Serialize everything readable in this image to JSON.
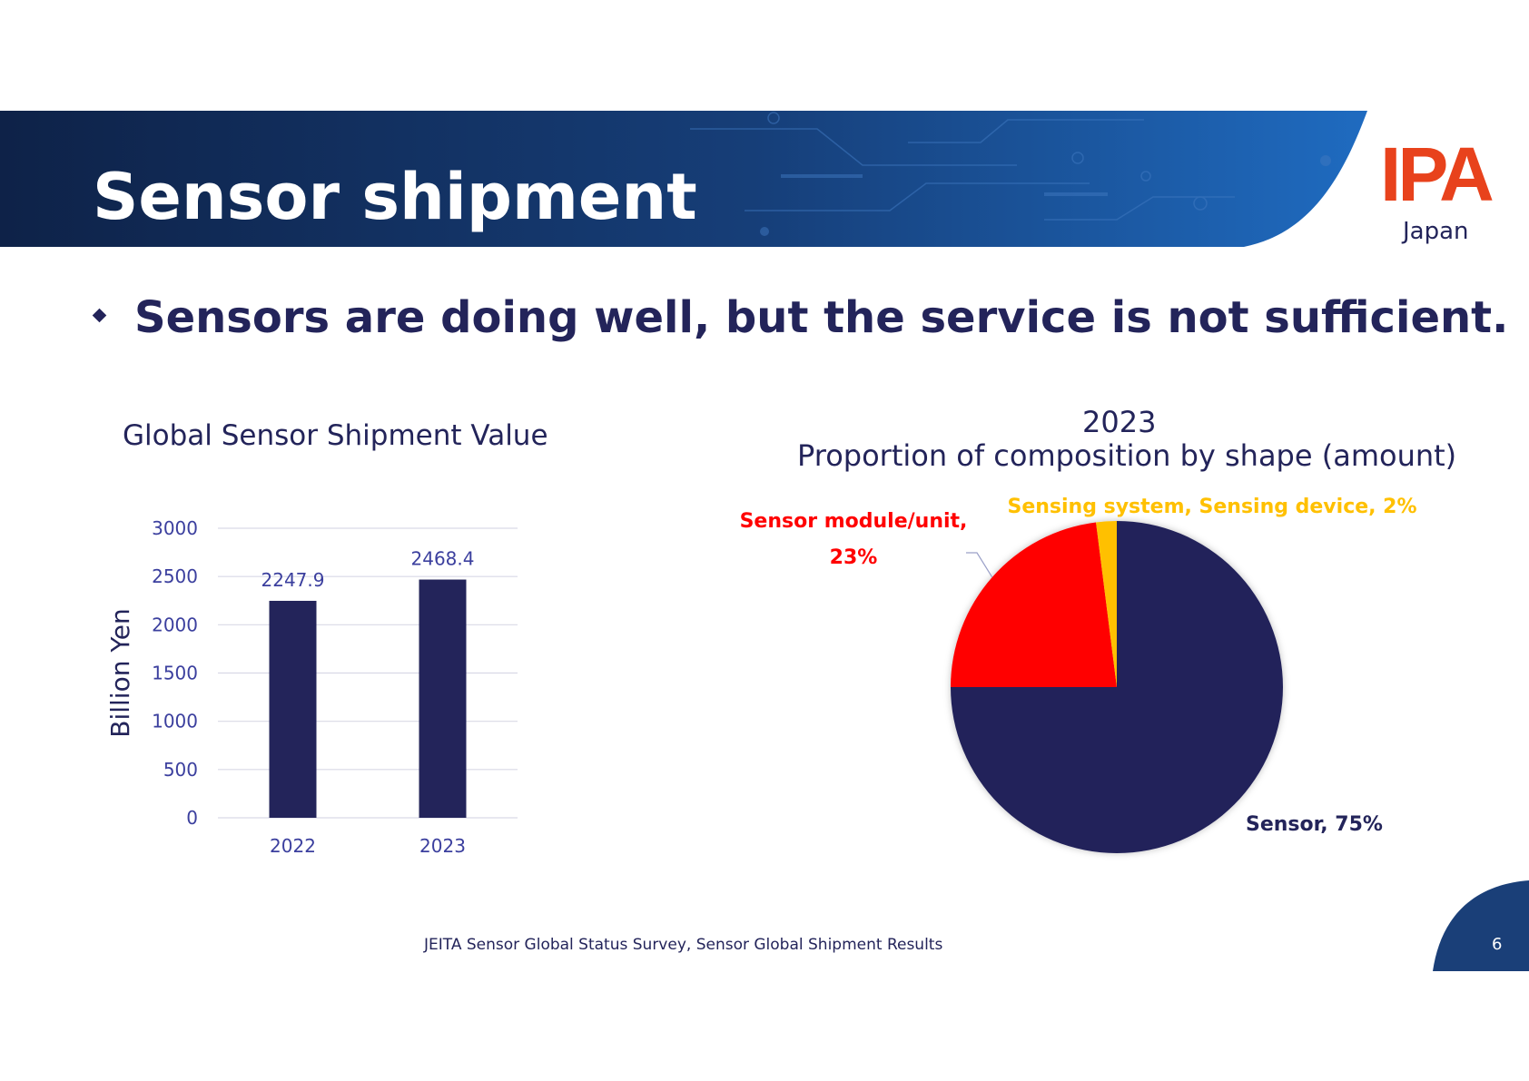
{
  "slide": {
    "title": "Sensor shipment",
    "logo": {
      "text": "IPA",
      "subtext": "Japan",
      "color": "#e8421c"
    },
    "headline": "Sensors are doing well, but the service is not sufficient.",
    "source": "JEITA Sensor Global Status Survey, Sensor Global Shipment Results",
    "page_number": "6"
  },
  "colors": {
    "navy": "#23245a",
    "banner_dark": "#0e2248",
    "banner_light": "#1f6bc0",
    "red": "#ff0000",
    "yellow": "#ffc000"
  },
  "chart_data": [
    {
      "type": "bar",
      "title": "Global Sensor Shipment Value",
      "ylabel": "Billion Yen",
      "categories": [
        "2022",
        "2023"
      ],
      "values": [
        2247.9,
        2468.4
      ],
      "value_labels": [
        "2247.9",
        "2468.4"
      ],
      "y_ticks": [
        "0",
        "500",
        "1000",
        "1500",
        "2000",
        "2500",
        "3000"
      ],
      "ylim": [
        0,
        3000
      ],
      "grid": true
    },
    {
      "type": "pie",
      "title": "2023",
      "subtitle": "Proportion of composition by shape (amount)",
      "slices": [
        {
          "label": "Sensor, 75%",
          "value": 75,
          "color": "#23245a"
        },
        {
          "label": "Sensor module/unit,",
          "label2": "23%",
          "value": 23,
          "color": "#ff0000"
        },
        {
          "label": "Sensing system, Sensing device, 2%",
          "value": 2,
          "color": "#ffc000"
        }
      ]
    }
  ]
}
